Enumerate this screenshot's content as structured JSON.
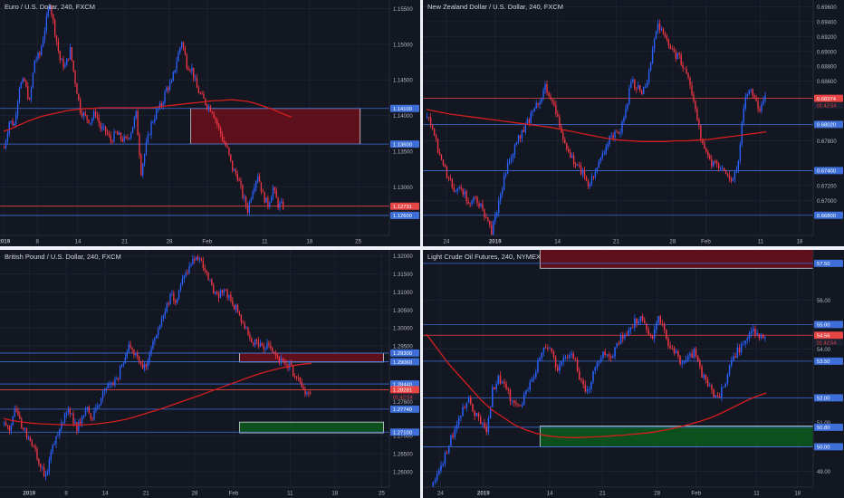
{
  "colors": {
    "background": "#131722",
    "grid": "#1e2230",
    "axis_text": "#b2b5be",
    "up": "#2962ff",
    "down": "#f23645",
    "ma": "#d41e1e",
    "level_line": "#3e6fd8",
    "price_line": "#e84545",
    "resistance_zone": "#6b0f1a",
    "support_zone": "#0c5a1c"
  },
  "panes": [
    {
      "title": "Euro / U.S. Dollar, 240, FXCM",
      "chart_data": {
        "type": "candlestick",
        "symbol": "EURUSD",
        "timeframe": "240",
        "ylim": [
          1.1232,
          1.1562
        ],
        "y_ticks": [
          {
            "value": 1.155,
            "label": "1.15500"
          },
          {
            "value": 1.15,
            "label": "1.15000"
          },
          {
            "value": 1.145,
            "label": "1.14500"
          },
          {
            "value": 1.14,
            "label": "1.14000"
          },
          {
            "value": 1.135,
            "label": "1.13500"
          },
          {
            "value": 1.13,
            "label": "1.13000"
          }
        ],
        "x_ticks": [
          {
            "pos": 0.01,
            "label": "2019",
            "bold": true
          },
          {
            "pos": 0.096,
            "label": "8"
          },
          {
            "pos": 0.2,
            "label": "14"
          },
          {
            "pos": 0.32,
            "label": "21"
          },
          {
            "pos": 0.435,
            "label": "28"
          },
          {
            "pos": 0.532,
            "label": "Feb"
          },
          {
            "pos": 0.68,
            "label": "11"
          },
          {
            "pos": 0.795,
            "label": "18"
          },
          {
            "pos": 0.92,
            "label": "25"
          }
        ],
        "close": [
          1.1355,
          1.1392,
          1.1388,
          1.1442,
          1.1448,
          1.1418,
          1.1478,
          1.1485,
          1.1522,
          1.1558,
          1.1518,
          1.1478,
          1.1468,
          1.1492,
          1.1448,
          1.1408,
          1.1398,
          1.1392,
          1.1405,
          1.1382,
          1.1378,
          1.1365,
          1.1375,
          1.1368,
          1.1365,
          1.1378,
          1.1402,
          1.1322,
          1.1358,
          1.1388,
          1.1405,
          1.1415,
          1.1438,
          1.1445,
          1.1478,
          1.1505,
          1.1472,
          1.1465,
          1.1438,
          1.1425,
          1.1415,
          1.1408,
          1.1388,
          1.1368,
          1.1352,
          1.1325,
          1.1315,
          1.1288,
          1.1268,
          1.1298,
          1.1318,
          1.1288,
          1.1275,
          1.1298,
          1.1275,
          1.1273
        ],
        "ma": [
          1.1378,
          1.1381,
          1.1385,
          1.1389,
          1.1393,
          1.1396,
          1.1399,
          1.1401,
          1.1403,
          1.1405,
          1.1407,
          1.1408,
          1.1409,
          1.141,
          1.141,
          1.1411,
          1.1411,
          1.1411,
          1.1411,
          1.1411,
          1.1411,
          1.1411,
          1.1411,
          1.1411,
          1.1412,
          1.1413,
          1.1414,
          1.1415,
          1.1416,
          1.1417,
          1.1418,
          1.1419,
          1.142,
          1.1421,
          1.1421,
          1.1422,
          1.1422,
          1.1421,
          1.142,
          1.1418,
          1.1415,
          1.1412,
          1.1409,
          1.1405,
          1.1401,
          1.1398
        ],
        "zones": [
          {
            "from": 1.136,
            "to": 1.141,
            "x0": 0.49,
            "x1": 0.925,
            "kind": "resistance"
          }
        ],
        "levels": [
          {
            "value": 1.141,
            "label": "1.14100",
            "kind": "level"
          },
          {
            "value": 1.136,
            "label": "1.13600",
            "kind": "level"
          },
          {
            "value": 1.1273,
            "label": "1.12731",
            "kind": "price"
          },
          {
            "value": 1.126,
            "label": "1.12600",
            "kind": "level"
          }
        ],
        "countdown": "01:42:54"
      }
    },
    {
      "title": "New Zealand Dollar / U.S. Dollar, 240, FXCM",
      "chart_data": {
        "type": "candlestick",
        "symbol": "NZDUSD",
        "timeframe": "240",
        "ylim": [
          0.6653,
          0.6969
        ],
        "y_ticks": [
          {
            "value": 0.696,
            "label": "0.69600"
          },
          {
            "value": 0.694,
            "label": "0.69400"
          },
          {
            "value": 0.692,
            "label": "0.69200"
          },
          {
            "value": 0.69,
            "label": "0.69000"
          },
          {
            "value": 0.688,
            "label": "0.68800"
          },
          {
            "value": 0.686,
            "label": "0.68600"
          },
          {
            "value": 0.68,
            "label": "0.68000"
          },
          {
            "value": 0.678,
            "label": "0.67800"
          },
          {
            "value": 0.672,
            "label": "0.67200"
          },
          {
            "value": 0.67,
            "label": "0.67000"
          }
        ],
        "x_ticks": [
          {
            "pos": 0.06,
            "label": "24"
          },
          {
            "pos": 0.185,
            "label": "2019",
            "bold": true
          },
          {
            "pos": 0.345,
            "label": "14"
          },
          {
            "pos": 0.495,
            "label": "21"
          },
          {
            "pos": 0.64,
            "label": "28"
          },
          {
            "pos": 0.725,
            "label": "Feb"
          },
          {
            "pos": 0.865,
            "label": "11"
          },
          {
            "pos": 0.965,
            "label": "18"
          }
        ],
        "close": [
          0.6812,
          0.6795,
          0.6768,
          0.6748,
          0.6728,
          0.6715,
          0.6722,
          0.6708,
          0.6695,
          0.6705,
          0.6692,
          0.6672,
          0.6658,
          0.6685,
          0.6718,
          0.6748,
          0.6765,
          0.6782,
          0.6795,
          0.6808,
          0.6828,
          0.6835,
          0.6852,
          0.6838,
          0.6815,
          0.6795,
          0.6772,
          0.6755,
          0.6745,
          0.6738,
          0.6722,
          0.6732,
          0.6752,
          0.6768,
          0.6782,
          0.6792,
          0.6795,
          0.6818,
          0.6862,
          0.6852,
          0.6845,
          0.6858,
          0.6905,
          0.6935,
          0.6928,
          0.6905,
          0.6895,
          0.6892,
          0.6875,
          0.6852,
          0.6825,
          0.6782,
          0.6762,
          0.6748,
          0.6752,
          0.6738,
          0.6732,
          0.6728,
          0.6748,
          0.6828,
          0.6852,
          0.6838,
          0.6822,
          0.6837
        ],
        "ma": [
          0.6822,
          0.6819,
          0.6816,
          0.6814,
          0.6812,
          0.681,
          0.6808,
          0.6806,
          0.6804,
          0.6802,
          0.68,
          0.6798,
          0.6795,
          0.6792,
          0.6789,
          0.6786,
          0.6783,
          0.6781,
          0.678,
          0.6779,
          0.6779,
          0.6779,
          0.678,
          0.678,
          0.6781,
          0.6782,
          0.6784,
          0.6786,
          0.6788,
          0.679,
          0.6792
        ],
        "zones": [],
        "levels": [
          {
            "value": 0.6837,
            "label": "0.68374",
            "kind": "price"
          },
          {
            "value": 0.6802,
            "label": "0.68020",
            "kind": "level"
          },
          {
            "value": 0.674,
            "label": "0.67400",
            "kind": "level"
          },
          {
            "value": 0.668,
            "label": "0.66800",
            "kind": "level"
          }
        ],
        "countdown": "01:42:54"
      }
    },
    {
      "title": "British Pound / U.S. Dollar, 240, FXCM",
      "chart_data": {
        "type": "candlestick",
        "symbol": "GBPUSD",
        "timeframe": "240",
        "ylim": [
          1.2557,
          1.3217
        ],
        "y_ticks": [
          {
            "value": 1.32,
            "label": "1.32000"
          },
          {
            "value": 1.315,
            "label": "1.31500"
          },
          {
            "value": 1.31,
            "label": "1.31000"
          },
          {
            "value": 1.305,
            "label": "1.30500"
          },
          {
            "value": 1.3,
            "label": "1.30000"
          },
          {
            "value": 1.295,
            "label": "1.29500"
          },
          {
            "value": 1.27,
            "label": "1.27000"
          },
          {
            "value": 1.265,
            "label": "1.26500"
          },
          {
            "value": 1.26,
            "label": "1.26000"
          }
        ],
        "x_ticks": [
          {
            "pos": 0.075,
            "label": "2019",
            "bold": true
          },
          {
            "pos": 0.17,
            "label": "8"
          },
          {
            "pos": 0.27,
            "label": "14"
          },
          {
            "pos": 0.375,
            "label": "21"
          },
          {
            "pos": 0.5,
            "label": "28"
          },
          {
            "pos": 0.6,
            "label": "Feb"
          },
          {
            "pos": 0.745,
            "label": "11"
          },
          {
            "pos": 0.86,
            "label": "18"
          },
          {
            "pos": 0.98,
            "label": "25"
          }
        ],
        "close": [
          1.2735,
          1.2708,
          1.2768,
          1.2742,
          1.2712,
          1.2685,
          1.2655,
          1.2618,
          1.2585,
          1.2648,
          1.2695,
          1.2738,
          1.2768,
          1.2752,
          1.2722,
          1.2758,
          1.2775,
          1.2742,
          1.2788,
          1.2815,
          1.2838,
          1.2852,
          1.2868,
          1.2912,
          1.2958,
          1.2935,
          1.2905,
          1.2888,
          1.2925,
          1.2965,
          1.3005,
          1.3045,
          1.3092,
          1.3078,
          1.3122,
          1.3148,
          1.3182,
          1.3205,
          1.3178,
          1.3152,
          1.3118,
          1.3085,
          1.3108,
          1.3092,
          1.3065,
          1.3048,
          1.3005,
          1.2985,
          1.2962,
          1.2952,
          1.2945,
          1.2958,
          1.2932,
          1.2915,
          1.2902,
          1.2895,
          1.2868,
          1.2852,
          1.2822,
          1.2828
        ],
        "ma": [
          1.2748,
          1.2742,
          1.2738,
          1.2735,
          1.2733,
          1.2732,
          1.2731,
          1.273,
          1.273,
          1.2731,
          1.2733,
          1.2736,
          1.274,
          1.2745,
          1.2752,
          1.276,
          1.2768,
          1.2776,
          1.2785,
          1.2794,
          1.2803,
          1.2812,
          1.2822,
          1.2831,
          1.2841,
          1.285,
          1.286,
          1.2869,
          1.2877,
          1.2884,
          1.289,
          1.2895,
          1.2899,
          1.2901
        ],
        "zones": [
          {
            "from": 1.2905,
            "to": 1.293,
            "x0": 0.615,
            "x1": 0.985,
            "kind": "resistance"
          },
          {
            "from": 1.2708,
            "to": 1.2738,
            "x0": 0.615,
            "x1": 0.985,
            "kind": "support"
          }
        ],
        "levels": [
          {
            "value": 1.293,
            "label": "1.29300",
            "kind": "level"
          },
          {
            "value": 1.2906,
            "label": "1.29060",
            "kind": "level"
          },
          {
            "value": 1.2844,
            "label": "1.28440",
            "kind": "level"
          },
          {
            "value": 1.2828,
            "label": "1.28281",
            "kind": "price"
          },
          {
            "value": 1.2774,
            "label": "1.27740",
            "kind": "level"
          },
          {
            "value": 1.271,
            "label": "1.27100",
            "kind": "level"
          }
        ],
        "extra_labels": [
          {
            "value": 1.2795,
            "label": "1.27600"
          }
        ],
        "countdown": "01:42:54"
      }
    },
    {
      "title": "Light Crude Oil Futures, 240, NYMEX",
      "chart_data": {
        "type": "candlestick",
        "symbol": "CL",
        "timeframe": "240",
        "ylim": [
          48.35,
          58.05
        ],
        "y_ticks": [
          {
            "value": 56,
            "label": "56.00"
          },
          {
            "value": 54,
            "label": "54.00"
          },
          {
            "value": 51,
            "label": "51.00"
          },
          {
            "value": 49,
            "label": "49.00"
          }
        ],
        "x_ticks": [
          {
            "pos": 0.045,
            "label": "24"
          },
          {
            "pos": 0.155,
            "label": "2019",
            "bold": true
          },
          {
            "pos": 0.325,
            "label": "14"
          },
          {
            "pos": 0.46,
            "label": "21"
          },
          {
            "pos": 0.6,
            "label": "28"
          },
          {
            "pos": 0.7,
            "label": "Feb"
          },
          {
            "pos": 0.855,
            "label": "11"
          },
          {
            "pos": 0.96,
            "label": "18"
          }
        ],
        "close": [
          47.9,
          48.4,
          49.1,
          49.6,
          50.3,
          50.8,
          51.6,
          52.0,
          51.4,
          51.0,
          50.6,
          52.3,
          52.8,
          52.6,
          52.0,
          51.6,
          51.8,
          52.4,
          52.9,
          53.6,
          54.1,
          53.8,
          53.2,
          53.5,
          53.9,
          53.4,
          52.6,
          52.2,
          53.1,
          53.4,
          53.9,
          53.6,
          54.2,
          54.5,
          54.6,
          55.1,
          55.4,
          54.8,
          54.4,
          55.2,
          54.7,
          54.1,
          53.8,
          53.4,
          53.6,
          53.9,
          53.2,
          52.6,
          52.3,
          51.9,
          52.5,
          53.2,
          53.8,
          54.1,
          54.4,
          54.8,
          54.6,
          54.56
        ],
        "ma": [
          54.6,
          54.0,
          53.4,
          52.9,
          52.4,
          51.9,
          51.5,
          51.2,
          50.9,
          50.7,
          50.55,
          50.45,
          50.4,
          50.38,
          50.38,
          50.4,
          50.42,
          50.45,
          50.48,
          50.52,
          50.56,
          50.62,
          50.7,
          50.8,
          50.92,
          51.05,
          51.2,
          51.4,
          51.62,
          51.85,
          52.05,
          52.2
        ],
        "zones": [
          {
            "from": 57.3,
            "to": 58.2,
            "x0": 0.3,
            "x1": 1.02,
            "kind": "resistance"
          },
          {
            "from": 50.0,
            "to": 50.85,
            "x0": 0.3,
            "x1": 1.02,
            "kind": "support"
          }
        ],
        "levels": [
          {
            "value": 57.5,
            "label": "57.50",
            "kind": "level"
          },
          {
            "value": 55.0,
            "label": "55.00",
            "kind": "level"
          },
          {
            "value": 54.56,
            "label": "54.56",
            "kind": "price"
          },
          {
            "value": 53.5,
            "label": "53.50",
            "kind": "level"
          },
          {
            "value": 52.0,
            "label": "52.00",
            "kind": "level"
          },
          {
            "value": 50.8,
            "label": "50.80",
            "kind": "level"
          },
          {
            "value": 50.0,
            "label": "50.00",
            "kind": "level"
          }
        ],
        "countdown": "01:42:54"
      }
    }
  ]
}
